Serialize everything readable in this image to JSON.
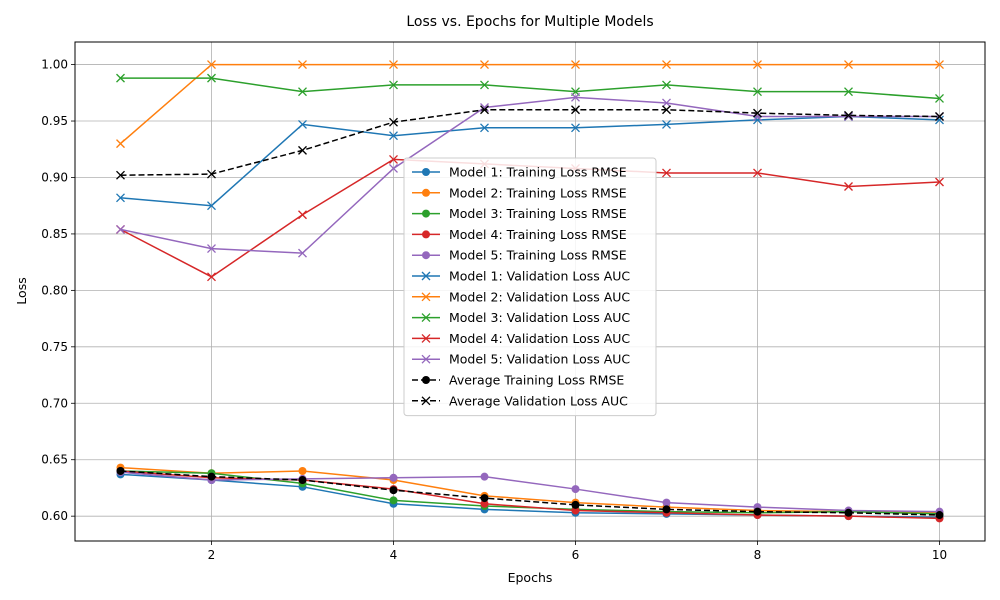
{
  "chart_data": {
    "type": "line",
    "title": "Loss vs. Epochs for Multiple Models",
    "xlabel": "Epochs",
    "ylabel": "Loss",
    "xlim": [
      0.5,
      10.5
    ],
    "ylim": [
      0.578,
      1.02
    ],
    "xticks": [
      2,
      4,
      6,
      8,
      10
    ],
    "yticks": [
      0.6,
      0.65,
      0.7,
      0.75,
      0.8,
      0.85,
      0.9,
      0.95,
      1.0
    ],
    "grid": true,
    "legend_position": "center",
    "x": [
      1,
      2,
      3,
      4,
      5,
      6,
      7,
      8,
      9,
      10
    ],
    "series": [
      {
        "name": "Model 1: Training Loss RMSE",
        "color": "#1f77b4",
        "marker": "circle",
        "dash": "solid",
        "values": [
          0.637,
          0.632,
          0.626,
          0.611,
          0.606,
          0.603,
          0.602,
          0.601,
          0.6,
          0.599
        ]
      },
      {
        "name": "Model 2: Training Loss RMSE",
        "color": "#ff7f0e",
        "marker": "circle",
        "dash": "solid",
        "values": [
          0.643,
          0.638,
          0.64,
          0.632,
          0.618,
          0.612,
          0.608,
          0.605,
          0.604,
          0.603
        ]
      },
      {
        "name": "Model 3: Training Loss RMSE",
        "color": "#2ca02c",
        "marker": "circle",
        "dash": "solid",
        "values": [
          0.64,
          0.638,
          0.629,
          0.614,
          0.609,
          0.606,
          0.604,
          0.603,
          0.604,
          0.602
        ]
      },
      {
        "name": "Model 4: Training Loss RMSE",
        "color": "#d62728",
        "marker": "circle",
        "dash": "solid",
        "values": [
          0.64,
          0.634,
          0.632,
          0.624,
          0.611,
          0.605,
          0.603,
          0.601,
          0.6,
          0.598
        ]
      },
      {
        "name": "Model 5: Training Loss RMSE",
        "color": "#9467bd",
        "marker": "circle",
        "dash": "solid",
        "values": [
          0.639,
          0.632,
          0.633,
          0.634,
          0.635,
          0.624,
          0.612,
          0.608,
          0.605,
          0.604
        ]
      },
      {
        "name": "Model 1: Validation Loss AUC",
        "color": "#1f77b4",
        "marker": "x",
        "dash": "solid",
        "values": [
          0.882,
          0.875,
          0.947,
          0.937,
          0.944,
          0.944,
          0.947,
          0.951,
          0.954,
          0.951
        ]
      },
      {
        "name": "Model 2: Validation Loss AUC",
        "color": "#ff7f0e",
        "marker": "x",
        "dash": "solid",
        "values": [
          0.93,
          1.0,
          1.0,
          1.0,
          1.0,
          1.0,
          1.0,
          1.0,
          1.0,
          1.0
        ]
      },
      {
        "name": "Model 3: Validation Loss AUC",
        "color": "#2ca02c",
        "marker": "x",
        "dash": "solid",
        "values": [
          0.988,
          0.988,
          0.976,
          0.982,
          0.982,
          0.976,
          0.982,
          0.976,
          0.976,
          0.97
        ]
      },
      {
        "name": "Model 4: Validation Loss AUC",
        "color": "#d62728",
        "marker": "x",
        "dash": "solid",
        "values": [
          0.854,
          0.812,
          0.867,
          0.916,
          0.912,
          0.908,
          0.904,
          0.904,
          0.892,
          0.896
        ]
      },
      {
        "name": "Model 5: Validation Loss AUC",
        "color": "#9467bd",
        "marker": "x",
        "dash": "solid",
        "values": [
          0.854,
          0.837,
          0.833,
          0.908,
          0.962,
          0.971,
          0.966,
          0.954,
          0.954,
          0.954
        ]
      },
      {
        "name": "Average Training Loss RMSE",
        "color": "#000000",
        "marker": "circle",
        "dash": "dashed",
        "values": [
          0.64,
          0.635,
          0.632,
          0.623,
          0.616,
          0.61,
          0.606,
          0.604,
          0.603,
          0.601
        ]
      },
      {
        "name": "Average Validation Loss AUC",
        "color": "#000000",
        "marker": "x",
        "dash": "dashed",
        "values": [
          0.902,
          0.903,
          0.924,
          0.949,
          0.96,
          0.96,
          0.96,
          0.957,
          0.955,
          0.954
        ]
      }
    ]
  }
}
